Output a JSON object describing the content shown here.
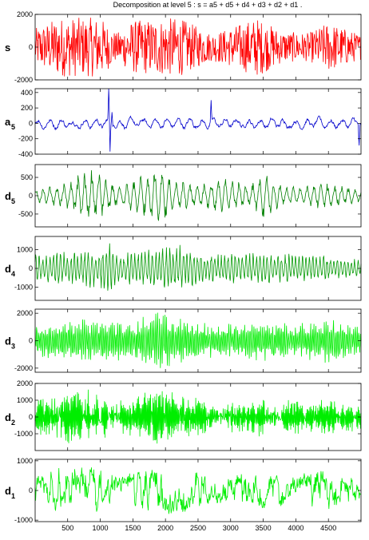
{
  "chart_data": {
    "type": "line",
    "title": "Decomposition at level 5 : s = a5 + d5 + d4 + d3 + d2 + d1 .",
    "x_range": [
      1,
      5000
    ],
    "x_ticks": [
      500,
      1000,
      1500,
      2000,
      2500,
      3000,
      3500,
      4000,
      4500
    ],
    "panels": [
      {
        "label": "s",
        "subscript": "",
        "color": "#ff0000",
        "ylim": [
          -2000,
          2000
        ],
        "yticks": [
          -2000,
          0,
          2000
        ],
        "amplitude": 1900,
        "kind": "signal",
        "envelope": [
          [
            0,
            0.6
          ],
          [
            350,
            0.95
          ],
          [
            1000,
            0.95
          ],
          [
            1250,
            0.45
          ],
          [
            1500,
            0.85
          ],
          [
            2200,
            0.95
          ],
          [
            2700,
            0.45
          ],
          [
            2900,
            0.55
          ],
          [
            3400,
            0.95
          ],
          [
            3800,
            0.5
          ],
          [
            4200,
            0.45
          ],
          [
            4500,
            0.8
          ],
          [
            5000,
            0.4
          ]
        ]
      },
      {
        "label": "a",
        "subscript": "5",
        "color": "#0000cc",
        "ylim": [
          -400,
          450
        ],
        "yticks": [
          -400,
          -200,
          0,
          200,
          400
        ],
        "amplitude": 90,
        "kind": "approx",
        "spikes": [
          [
            1130,
            450
          ],
          [
            1150,
            -420
          ],
          [
            1180,
            200
          ],
          [
            2700,
            270
          ],
          [
            4970,
            -300
          ]
        ],
        "envelope": [
          [
            0,
            1
          ],
          [
            5000,
            1
          ]
        ]
      },
      {
        "label": "d",
        "subscript": "5",
        "color": "#008000",
        "ylim": [
          -850,
          850
        ],
        "yticks": [
          -500,
          0,
          500
        ],
        "amplitude": 820,
        "kind": "detail",
        "freq": 0.06,
        "envelope": [
          [
            0,
            0.25
          ],
          [
            400,
            0.4
          ],
          [
            900,
            0.95
          ],
          [
            1300,
            0.35
          ],
          [
            1900,
            1
          ],
          [
            2200,
            0.55
          ],
          [
            2500,
            0.35
          ],
          [
            2800,
            0.55
          ],
          [
            3000,
            0.6
          ],
          [
            3300,
            0.35
          ],
          [
            3500,
            0.8
          ],
          [
            3800,
            0.35
          ],
          [
            4100,
            0.3
          ],
          [
            4400,
            0.5
          ],
          [
            5000,
            0.2
          ]
        ]
      },
      {
        "label": "d",
        "subscript": "4",
        "color": "#009900",
        "ylim": [
          -1700,
          1700
        ],
        "yticks": [
          -1000,
          0,
          1000
        ],
        "amplitude": 1600,
        "kind": "detail",
        "freq": 0.12,
        "envelope": [
          [
            0,
            0.55
          ],
          [
            500,
            0.6
          ],
          [
            1000,
            0.7
          ],
          [
            1130,
            1
          ],
          [
            1250,
            0.5
          ],
          [
            1800,
            0.65
          ],
          [
            2200,
            0.8
          ],
          [
            2600,
            0.55
          ],
          [
            3100,
            0.5
          ],
          [
            3500,
            0.55
          ],
          [
            4000,
            0.5
          ],
          [
            4500,
            0.45
          ],
          [
            5000,
            0.3
          ]
        ]
      },
      {
        "label": "d",
        "subscript": "3",
        "color": "#00ee00",
        "ylim": [
          -2300,
          2300
        ],
        "yticks": [
          -2000,
          0,
          2000
        ],
        "amplitude": 2250,
        "kind": "detail",
        "freq": 0.24,
        "envelope": [
          [
            0,
            0.6
          ],
          [
            500,
            0.7
          ],
          [
            1000,
            0.75
          ],
          [
            1400,
            0.65
          ],
          [
            1900,
            0.95
          ],
          [
            2500,
            0.6
          ],
          [
            3000,
            0.55
          ],
          [
            3500,
            0.7
          ],
          [
            4000,
            0.55
          ],
          [
            4600,
            0.8
          ],
          [
            5000,
            0.45
          ]
        ]
      },
      {
        "label": "d",
        "subscript": "2",
        "color": "#00ee00",
        "ylim": [
          -2000,
          2000
        ],
        "yticks": [
          -1000,
          0,
          1000,
          2000
        ],
        "amplitude": 1850,
        "kind": "detail",
        "freq": 0.45,
        "envelope": [
          [
            0,
            0.65
          ],
          [
            400,
            0.85
          ],
          [
            900,
            0.9
          ],
          [
            1300,
            0.55
          ],
          [
            1800,
            0.9
          ],
          [
            2300,
            0.75
          ],
          [
            2700,
            0.5
          ],
          [
            3300,
            0.7
          ],
          [
            3900,
            0.55
          ],
          [
            4400,
            0.65
          ],
          [
            5000,
            0.45
          ]
        ]
      },
      {
        "label": "d",
        "subscript": "1",
        "color": "#00ee00",
        "ylim": [
          -1050,
          1050
        ],
        "yticks": [
          -1000,
          0,
          1000
        ],
        "amplitude": 1000,
        "kind": "detail",
        "freq": 0.9,
        "envelope": [
          [
            0,
            0.55
          ],
          [
            400,
            0.8
          ],
          [
            900,
            0.85
          ],
          [
            1300,
            0.5
          ],
          [
            1800,
            0.85
          ],
          [
            2300,
            0.75
          ],
          [
            2700,
            0.45
          ],
          [
            3300,
            0.65
          ],
          [
            3900,
            0.55
          ],
          [
            4400,
            0.7
          ],
          [
            5000,
            0.4
          ]
        ]
      }
    ]
  }
}
